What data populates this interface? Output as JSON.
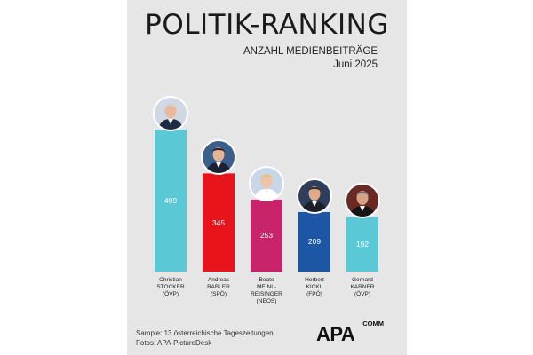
{
  "header": {
    "title": "POLITIK-RANKING",
    "subtitle": "ANZAHL MEDIENBEITRÄGE",
    "date": "Juni 2025"
  },
  "chart_data": {
    "type": "bar",
    "title": "POLITIK-RANKING",
    "subtitle": "ANZAHL MEDIENBEITRÄGE",
    "period": "Juni 2025",
    "categories": [
      "Christian STOCKER (ÖVP)",
      "Andreas BABLER (SPÖ)",
      "Beate MEINL-REISINGER (NEOS)",
      "Herbert KICKL (FPÖ)",
      "Gerhard KARNER (ÖVP)"
    ],
    "values": [
      499,
      345,
      253,
      209,
      192
    ],
    "colors": [
      "#5bc8d6",
      "#e8141b",
      "#c8246c",
      "#1e56a6",
      "#5bc8d6"
    ],
    "ylim": [
      0,
      520
    ],
    "people": [
      {
        "first": "Christian",
        "last": "STOCKER",
        "party": "(ÖVP)"
      },
      {
        "first": "Andreas",
        "last": "BABLER",
        "party": "(SPÖ)"
      },
      {
        "first": "Beate",
        "last": "MEINL-REISINGER",
        "party": "(NEOS)"
      },
      {
        "first": "Herbert",
        "last": "KICKL",
        "party": "(FPÖ)"
      },
      {
        "first": "Gerhard",
        "last": "KARNER",
        "party": "(ÖVP)"
      }
    ]
  },
  "footer": {
    "sample": "Sample: 13 österreichische Tageszeitungen",
    "photos": "Fotos: APA-PictureDesk"
  },
  "logo": {
    "main": "APA",
    "sub": "COMM"
  }
}
